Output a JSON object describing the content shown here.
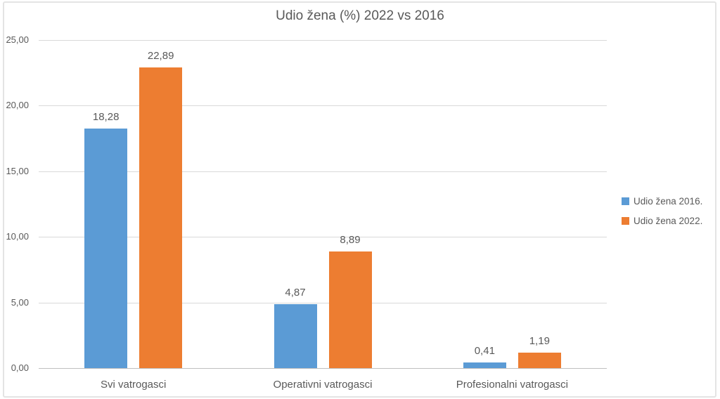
{
  "chart_data": {
    "type": "bar",
    "title": "Udio žena (%) 2022 vs 2016",
    "categories": [
      "Svi vatrogasci",
      "Operativni vatrogasci",
      "Profesionalni vatrogasci"
    ],
    "series": [
      {
        "name": "Udio žena 2016.",
        "color": "#5B9BD5",
        "values": [
          18.28,
          4.87,
          0.41
        ],
        "labels": [
          "18,28",
          "4,87",
          "0,41"
        ]
      },
      {
        "name": "Udio žena 2022.",
        "color": "#ED7D31",
        "values": [
          22.89,
          8.89,
          1.19
        ],
        "labels": [
          "22,89",
          "8,89",
          "1,19"
        ]
      }
    ],
    "xlabel": "",
    "ylabel": "",
    "ylim": [
      0,
      25
    ],
    "ytick_step": 5,
    "ytick_labels": [
      "0,00",
      "5,00",
      "10,00",
      "15,00",
      "20,00",
      "25,00"
    ],
    "grid": true,
    "legend_position": "right",
    "colors": {
      "gridline": "#d9d9d9",
      "axis_line": "#bfbfbf",
      "text": "#595959",
      "series_2016": "#5B9BD5",
      "series_2022": "#ED7D31"
    }
  }
}
